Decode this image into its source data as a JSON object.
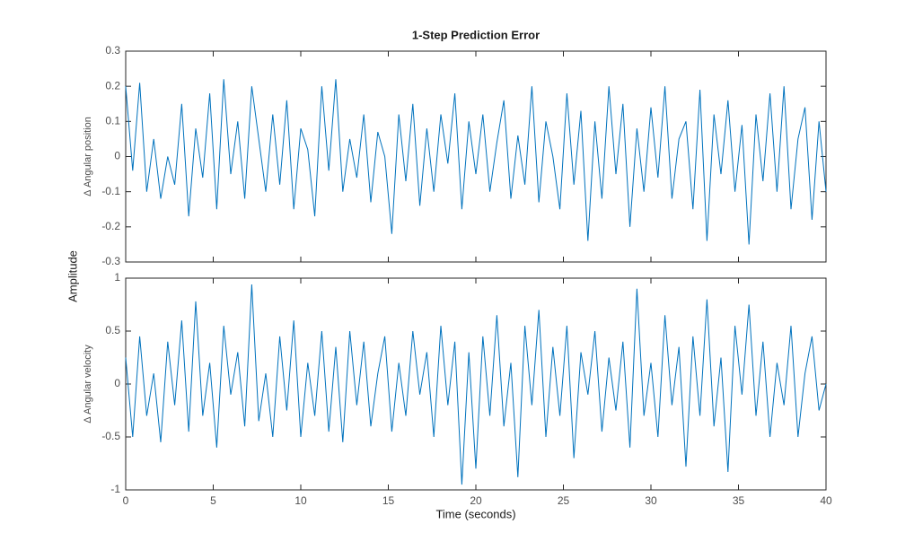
{
  "chart_data": [
    {
      "type": "line",
      "title": "1-Step Prediction Error",
      "shared_ylabel": "Amplitude",
      "ylabel": "Δ  Angular  position",
      "x": [
        0,
        0.4,
        0.8,
        1.2,
        1.6,
        2,
        2.4,
        2.8,
        3.2,
        3.6,
        4,
        4.4,
        4.8,
        5.2,
        5.6,
        6,
        6.4,
        6.8,
        7.2,
        7.6,
        8,
        8.4,
        8.8,
        9.2,
        9.6,
        10,
        10.4,
        10.8,
        11.2,
        11.6,
        12,
        12.4,
        12.8,
        13.2,
        13.6,
        14,
        14.4,
        14.8,
        15.2,
        15.6,
        16,
        16.4,
        16.8,
        17.2,
        17.6,
        18,
        18.4,
        18.8,
        19.2,
        19.6,
        20,
        20.4,
        20.8,
        21.2,
        21.6,
        22,
        22.4,
        22.8,
        23.2,
        23.6,
        24,
        24.4,
        24.8,
        25.2,
        25.6,
        26,
        26.4,
        26.8,
        27.2,
        27.6,
        28,
        28.4,
        28.8,
        29.2,
        29.6,
        30,
        30.4,
        30.8,
        31.2,
        31.6,
        32,
        32.4,
        32.8,
        33.2,
        33.6,
        34,
        34.4,
        34.8,
        35.2,
        35.6,
        36,
        36.4,
        36.8,
        37.2,
        37.6,
        38,
        38.4,
        38.8,
        39.2,
        39.6,
        40
      ],
      "values": [
        0.2,
        -0.04,
        0.21,
        -0.1,
        0.05,
        -0.12,
        0.0,
        -0.08,
        0.15,
        -0.17,
        0.08,
        -0.06,
        0.18,
        -0.15,
        0.22,
        -0.05,
        0.1,
        -0.12,
        0.2,
        0.05,
        -0.1,
        0.12,
        -0.08,
        0.16,
        -0.15,
        0.08,
        0.02,
        -0.17,
        0.2,
        -0.04,
        0.22,
        -0.1,
        0.05,
        -0.06,
        0.12,
        -0.13,
        0.07,
        0.0,
        -0.22,
        0.12,
        -0.07,
        0.15,
        -0.14,
        0.08,
        -0.1,
        0.12,
        -0.02,
        0.18,
        -0.15,
        0.1,
        -0.05,
        0.12,
        -0.1,
        0.04,
        0.16,
        -0.12,
        0.06,
        -0.08,
        0.2,
        -0.13,
        0.1,
        0.0,
        -0.15,
        0.18,
        -0.08,
        0.13,
        -0.24,
        0.1,
        -0.12,
        0.2,
        -0.05,
        0.15,
        -0.2,
        0.08,
        -0.1,
        0.14,
        -0.06,
        0.2,
        -0.12,
        0.05,
        0.1,
        -0.15,
        0.19,
        -0.24,
        0.12,
        -0.05,
        0.16,
        -0.1,
        0.09,
        -0.25,
        0.12,
        -0.07,
        0.18,
        -0.1,
        0.2,
        -0.15,
        0.05,
        0.14,
        -0.18,
        0.1,
        -0.1
      ],
      "color": "#0072bd",
      "xlim": [
        0,
        40
      ],
      "xticks": [
        0,
        5,
        10,
        15,
        20,
        25,
        30,
        35,
        40
      ],
      "ylim": [
        -0.3,
        0.3
      ],
      "yticks": [
        -0.3,
        -0.2,
        -0.1,
        0,
        0.1,
        0.2,
        0.3
      ]
    },
    {
      "type": "line",
      "ylabel": "Δ  Angular  velocity",
      "xlabel": "Time (seconds)",
      "x": [
        0,
        0.4,
        0.8,
        1.2,
        1.6,
        2,
        2.4,
        2.8,
        3.2,
        3.6,
        4,
        4.4,
        4.8,
        5.2,
        5.6,
        6,
        6.4,
        6.8,
        7.2,
        7.6,
        8,
        8.4,
        8.8,
        9.2,
        9.6,
        10,
        10.4,
        10.8,
        11.2,
        11.6,
        12,
        12.4,
        12.8,
        13.2,
        13.6,
        14,
        14.4,
        14.8,
        15.2,
        15.6,
        16,
        16.4,
        16.8,
        17.2,
        17.6,
        18,
        18.4,
        18.8,
        19.2,
        19.6,
        20,
        20.4,
        20.8,
        21.2,
        21.6,
        22,
        22.4,
        22.8,
        23.2,
        23.6,
        24,
        24.4,
        24.8,
        25.2,
        25.6,
        26,
        26.4,
        26.8,
        27.2,
        27.6,
        28,
        28.4,
        28.8,
        29.2,
        29.6,
        30,
        30.4,
        30.8,
        31.2,
        31.6,
        32,
        32.4,
        32.8,
        33.2,
        33.6,
        34,
        34.4,
        34.8,
        35.2,
        35.6,
        36,
        36.4,
        36.8,
        37.2,
        37.6,
        38,
        38.4,
        38.8,
        39.2,
        39.6,
        40
      ],
      "values": [
        0.25,
        -0.5,
        0.45,
        -0.3,
        0.1,
        -0.55,
        0.4,
        -0.2,
        0.6,
        -0.45,
        0.78,
        -0.3,
        0.2,
        -0.6,
        0.55,
        -0.1,
        0.3,
        -0.4,
        0.94,
        -0.35,
        0.1,
        -0.5,
        0.45,
        -0.25,
        0.6,
        -0.5,
        0.2,
        -0.3,
        0.5,
        -0.45,
        0.35,
        -0.55,
        0.5,
        -0.2,
        0.4,
        -0.4,
        0.1,
        0.45,
        -0.45,
        0.2,
        -0.3,
        0.5,
        -0.1,
        0.3,
        -0.5,
        0.55,
        -0.2,
        0.4,
        -0.95,
        0.3,
        -0.8,
        0.45,
        -0.3,
        0.65,
        -0.4,
        0.2,
        -0.88,
        0.55,
        -0.2,
        0.7,
        -0.5,
        0.35,
        -0.3,
        0.55,
        -0.7,
        0.3,
        -0.1,
        0.5,
        -0.45,
        0.25,
        -0.25,
        0.4,
        -0.6,
        0.9,
        -0.3,
        0.2,
        -0.5,
        0.65,
        -0.2,
        0.35,
        -0.78,
        0.45,
        -0.3,
        0.8,
        -0.4,
        0.25,
        -0.83,
        0.55,
        -0.1,
        0.75,
        -0.3,
        0.4,
        -0.5,
        0.2,
        -0.2,
        0.55,
        -0.5,
        0.1,
        0.45,
        -0.25,
        0.0
      ],
      "color": "#0072bd",
      "xlim": [
        0,
        40
      ],
      "xticks": [
        0,
        5,
        10,
        15,
        20,
        25,
        30,
        35,
        40
      ],
      "ylim": [
        -1,
        1
      ],
      "yticks": [
        -1,
        -0.5,
        0,
        0.5,
        1
      ]
    }
  ]
}
